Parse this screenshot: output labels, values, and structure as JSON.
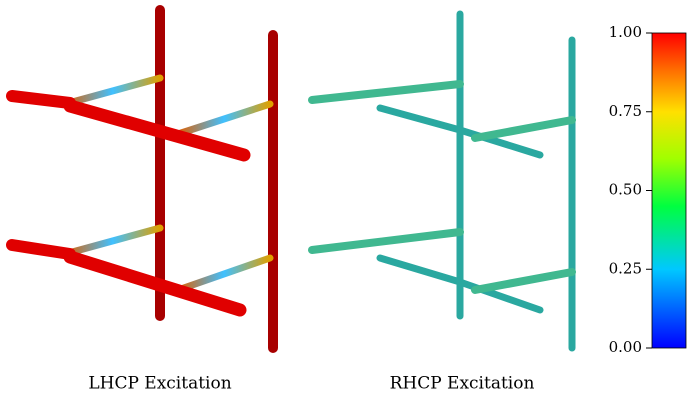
{
  "figure": {
    "panels": [
      {
        "caption": "LHCP Excitation"
      },
      {
        "caption": "RHCP Excitation"
      }
    ],
    "colorbar": {
      "lim": [
        0,
        1
      ],
      "ticks": [
        {
          "value": 0,
          "label": "0.00"
        },
        {
          "value": 0.25,
          "label": "0.25"
        },
        {
          "value": 0.5,
          "label": "0.50"
        },
        {
          "value": 0.75,
          "label": "0.75"
        },
        {
          "value": 1,
          "label": "1.00"
        }
      ]
    }
  }
}
